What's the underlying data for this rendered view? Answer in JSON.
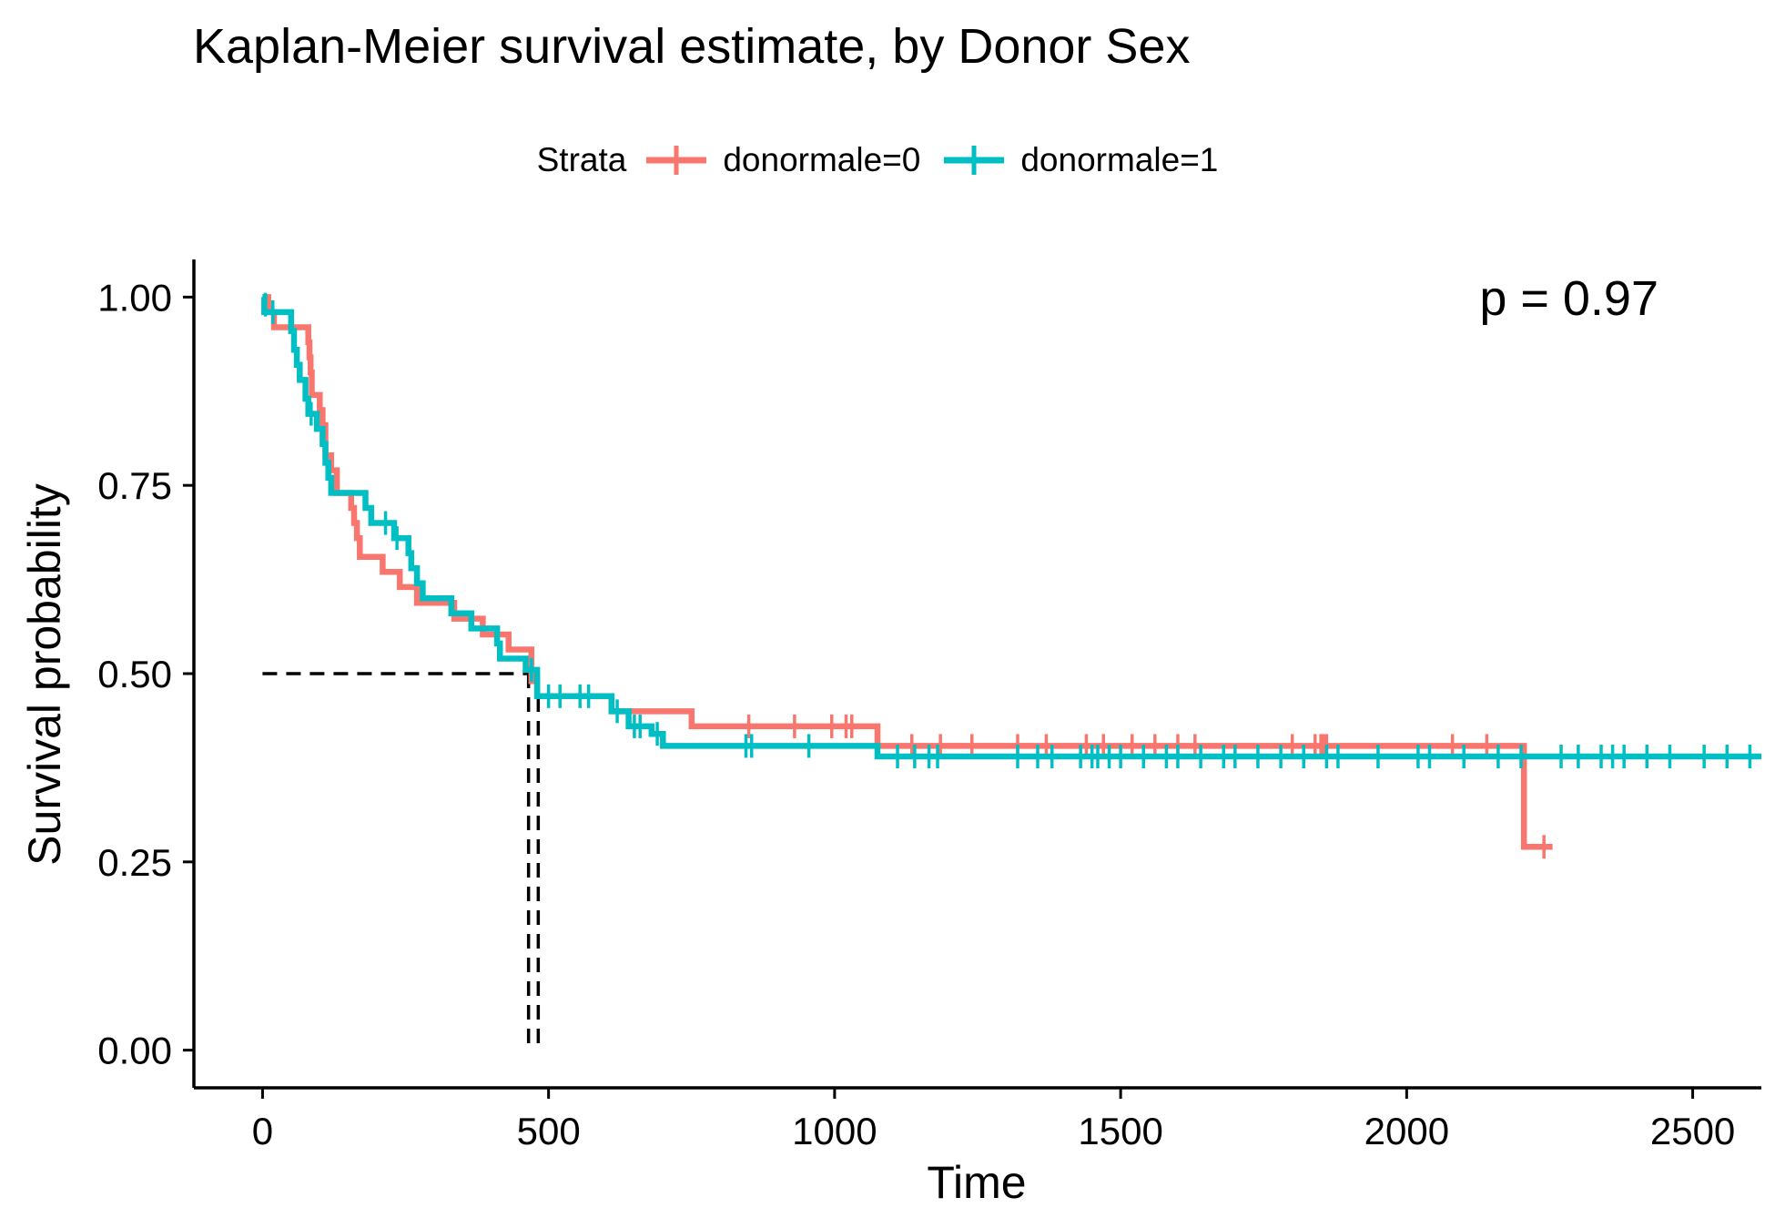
{
  "chart_data": {
    "type": "line",
    "subtype": "kaplan-meier step",
    "title": "Kaplan-Meier survival estimate, by Donor Sex",
    "xlabel": "Time",
    "ylabel": "Survival probability",
    "xlim": [
      -120,
      2620
    ],
    "ylim": [
      -0.05,
      1.05
    ],
    "xticks": [
      0,
      500,
      1000,
      1500,
      2000,
      2500
    ],
    "xtick_labels": [
      "0",
      "500",
      "1000",
      "1500",
      "2000",
      "2500"
    ],
    "yticks": [
      0,
      0.25,
      0.5,
      0.75,
      1.0
    ],
    "ytick_labels": [
      "0.00",
      "0.25",
      "0.50",
      "0.75",
      "1.00"
    ],
    "grid": false,
    "legend": {
      "title": "Strata",
      "placement": "top"
    },
    "annotation": "p = 0.97",
    "median_lines": {
      "y": 0.5,
      "x": [
        465,
        482
      ]
    },
    "series": [
      {
        "name": "donormale=0",
        "color": "#F8766D",
        "steps": [
          [
            0,
            1.0
          ],
          [
            10,
            0.98
          ],
          [
            20,
            0.96
          ],
          [
            75,
            0.96
          ],
          [
            80,
            0.94
          ],
          [
            82,
            0.92
          ],
          [
            84,
            0.9
          ],
          [
            86,
            0.87
          ],
          [
            100,
            0.85
          ],
          [
            105,
            0.83
          ],
          [
            110,
            0.79
          ],
          [
            120,
            0.77
          ],
          [
            130,
            0.74
          ],
          [
            150,
            0.74
          ],
          [
            155,
            0.72
          ],
          [
            160,
            0.7
          ],
          [
            165,
            0.68
          ],
          [
            170,
            0.655
          ],
          [
            200,
            0.655
          ],
          [
            210,
            0.635
          ],
          [
            240,
            0.615
          ],
          [
            270,
            0.594
          ],
          [
            330,
            0.594
          ],
          [
            335,
            0.573
          ],
          [
            380,
            0.573
          ],
          [
            385,
            0.552
          ],
          [
            420,
            0.552
          ],
          [
            430,
            0.532
          ],
          [
            460,
            0.532
          ],
          [
            470,
            0.49
          ],
          [
            480,
            0.47
          ],
          [
            600,
            0.47
          ],
          [
            610,
            0.45
          ],
          [
            740,
            0.45
          ],
          [
            750,
            0.43
          ],
          [
            1070,
            0.43
          ],
          [
            1075,
            0.404
          ],
          [
            2200,
            0.404
          ],
          [
            2205,
            0.27
          ],
          [
            2255,
            0.27
          ]
        ],
        "censored": [
          [
            850,
            0.43
          ],
          [
            930,
            0.43
          ],
          [
            995,
            0.43
          ],
          [
            1020,
            0.43
          ],
          [
            1030,
            0.43
          ],
          [
            1135,
            0.404
          ],
          [
            1185,
            0.404
          ],
          [
            1240,
            0.404
          ],
          [
            1320,
            0.404
          ],
          [
            1370,
            0.404
          ],
          [
            1440,
            0.404
          ],
          [
            1470,
            0.404
          ],
          [
            1520,
            0.404
          ],
          [
            1560,
            0.404
          ],
          [
            1600,
            0.404
          ],
          [
            1630,
            0.404
          ],
          [
            1800,
            0.404
          ],
          [
            1840,
            0.404
          ],
          [
            1850,
            0.404
          ],
          [
            1855,
            0.404
          ],
          [
            1860,
            0.404
          ],
          [
            2080,
            0.404
          ],
          [
            2140,
            0.404
          ],
          [
            2240,
            0.27
          ]
        ]
      },
      {
        "name": "donormale=1",
        "color": "#00BFC4",
        "steps": [
          [
            0,
            1.0
          ],
          [
            3,
            0.98
          ],
          [
            45,
            0.98
          ],
          [
            50,
            0.955
          ],
          [
            55,
            0.93
          ],
          [
            60,
            0.91
          ],
          [
            65,
            0.89
          ],
          [
            75,
            0.865
          ],
          [
            80,
            0.845
          ],
          [
            95,
            0.825
          ],
          [
            105,
            0.805
          ],
          [
            110,
            0.78
          ],
          [
            115,
            0.76
          ],
          [
            120,
            0.74
          ],
          [
            175,
            0.74
          ],
          [
            180,
            0.72
          ],
          [
            190,
            0.7
          ],
          [
            220,
            0.7
          ],
          [
            230,
            0.68
          ],
          [
            250,
            0.68
          ],
          [
            255,
            0.66
          ],
          [
            260,
            0.64
          ],
          [
            270,
            0.62
          ],
          [
            280,
            0.6
          ],
          [
            320,
            0.6
          ],
          [
            330,
            0.58
          ],
          [
            360,
            0.58
          ],
          [
            365,
            0.56
          ],
          [
            400,
            0.56
          ],
          [
            410,
            0.54
          ],
          [
            415,
            0.52
          ],
          [
            450,
            0.52
          ],
          [
            460,
            0.505
          ],
          [
            478,
            0.505
          ],
          [
            480,
            0.47
          ],
          [
            600,
            0.47
          ],
          [
            610,
            0.45
          ],
          [
            640,
            0.43
          ],
          [
            680,
            0.42
          ],
          [
            700,
            0.404
          ],
          [
            1070,
            0.404
          ],
          [
            1075,
            0.39
          ],
          [
            2620,
            0.39
          ]
        ],
        "censored": [
          [
            5,
            0.99
          ],
          [
            18,
            0.98
          ],
          [
            85,
            0.845
          ],
          [
            215,
            0.7
          ],
          [
            235,
            0.68
          ],
          [
            470,
            0.505
          ],
          [
            500,
            0.47
          ],
          [
            520,
            0.47
          ],
          [
            555,
            0.47
          ],
          [
            570,
            0.47
          ],
          [
            620,
            0.45
          ],
          [
            650,
            0.43
          ],
          [
            660,
            0.43
          ],
          [
            690,
            0.42
          ],
          [
            845,
            0.404
          ],
          [
            855,
            0.404
          ],
          [
            955,
            0.404
          ],
          [
            1110,
            0.39
          ],
          [
            1140,
            0.39
          ],
          [
            1165,
            0.39
          ],
          [
            1180,
            0.39
          ],
          [
            1320,
            0.39
          ],
          [
            1355,
            0.39
          ],
          [
            1380,
            0.39
          ],
          [
            1430,
            0.39
          ],
          [
            1450,
            0.39
          ],
          [
            1460,
            0.39
          ],
          [
            1480,
            0.39
          ],
          [
            1500,
            0.39
          ],
          [
            1540,
            0.39
          ],
          [
            1580,
            0.39
          ],
          [
            1600,
            0.39
          ],
          [
            1640,
            0.39
          ],
          [
            1680,
            0.39
          ],
          [
            1700,
            0.39
          ],
          [
            1740,
            0.39
          ],
          [
            1780,
            0.39
          ],
          [
            1820,
            0.39
          ],
          [
            1860,
            0.39
          ],
          [
            1880,
            0.39
          ],
          [
            1950,
            0.39
          ],
          [
            2020,
            0.39
          ],
          [
            2040,
            0.39
          ],
          [
            2100,
            0.39
          ],
          [
            2160,
            0.39
          ],
          [
            2200,
            0.39
          ],
          [
            2270,
            0.39
          ],
          [
            2300,
            0.39
          ],
          [
            2340,
            0.39
          ],
          [
            2360,
            0.39
          ],
          [
            2380,
            0.39
          ],
          [
            2420,
            0.39
          ],
          [
            2460,
            0.39
          ],
          [
            2520,
            0.39
          ],
          [
            2560,
            0.39
          ],
          [
            2600,
            0.39
          ]
        ]
      }
    ]
  }
}
